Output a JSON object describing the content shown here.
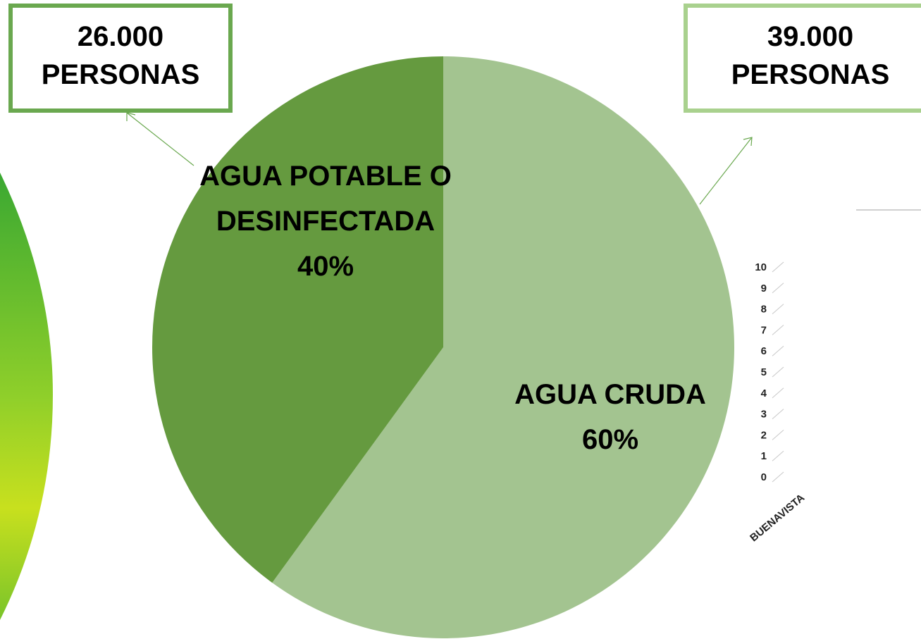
{
  "chart_data": [
    {
      "type": "pie",
      "categories": [
        "AGUA CRUDA",
        "AGUA POTABLE O DESINFECTADA"
      ],
      "values": [
        60,
        40
      ],
      "value_labels": [
        "60%",
        "40%"
      ],
      "colors": [
        "#a3c490",
        "#659a3f"
      ],
      "annotations": [
        {
          "lines": [
            "39.000",
            "PERSONAS"
          ],
          "color": "#a9d18e"
        },
        {
          "lines": [
            "26.000",
            "PERSONAS"
          ],
          "color": "#6aa84f"
        }
      ]
    },
    {
      "type": "bar",
      "categories": [
        "BUENAVISTA"
      ],
      "ylim": [
        0,
        10
      ],
      "yticks": [
        0,
        1,
        2,
        3,
        4,
        5,
        6,
        7,
        8,
        9,
        10
      ]
    }
  ]
}
